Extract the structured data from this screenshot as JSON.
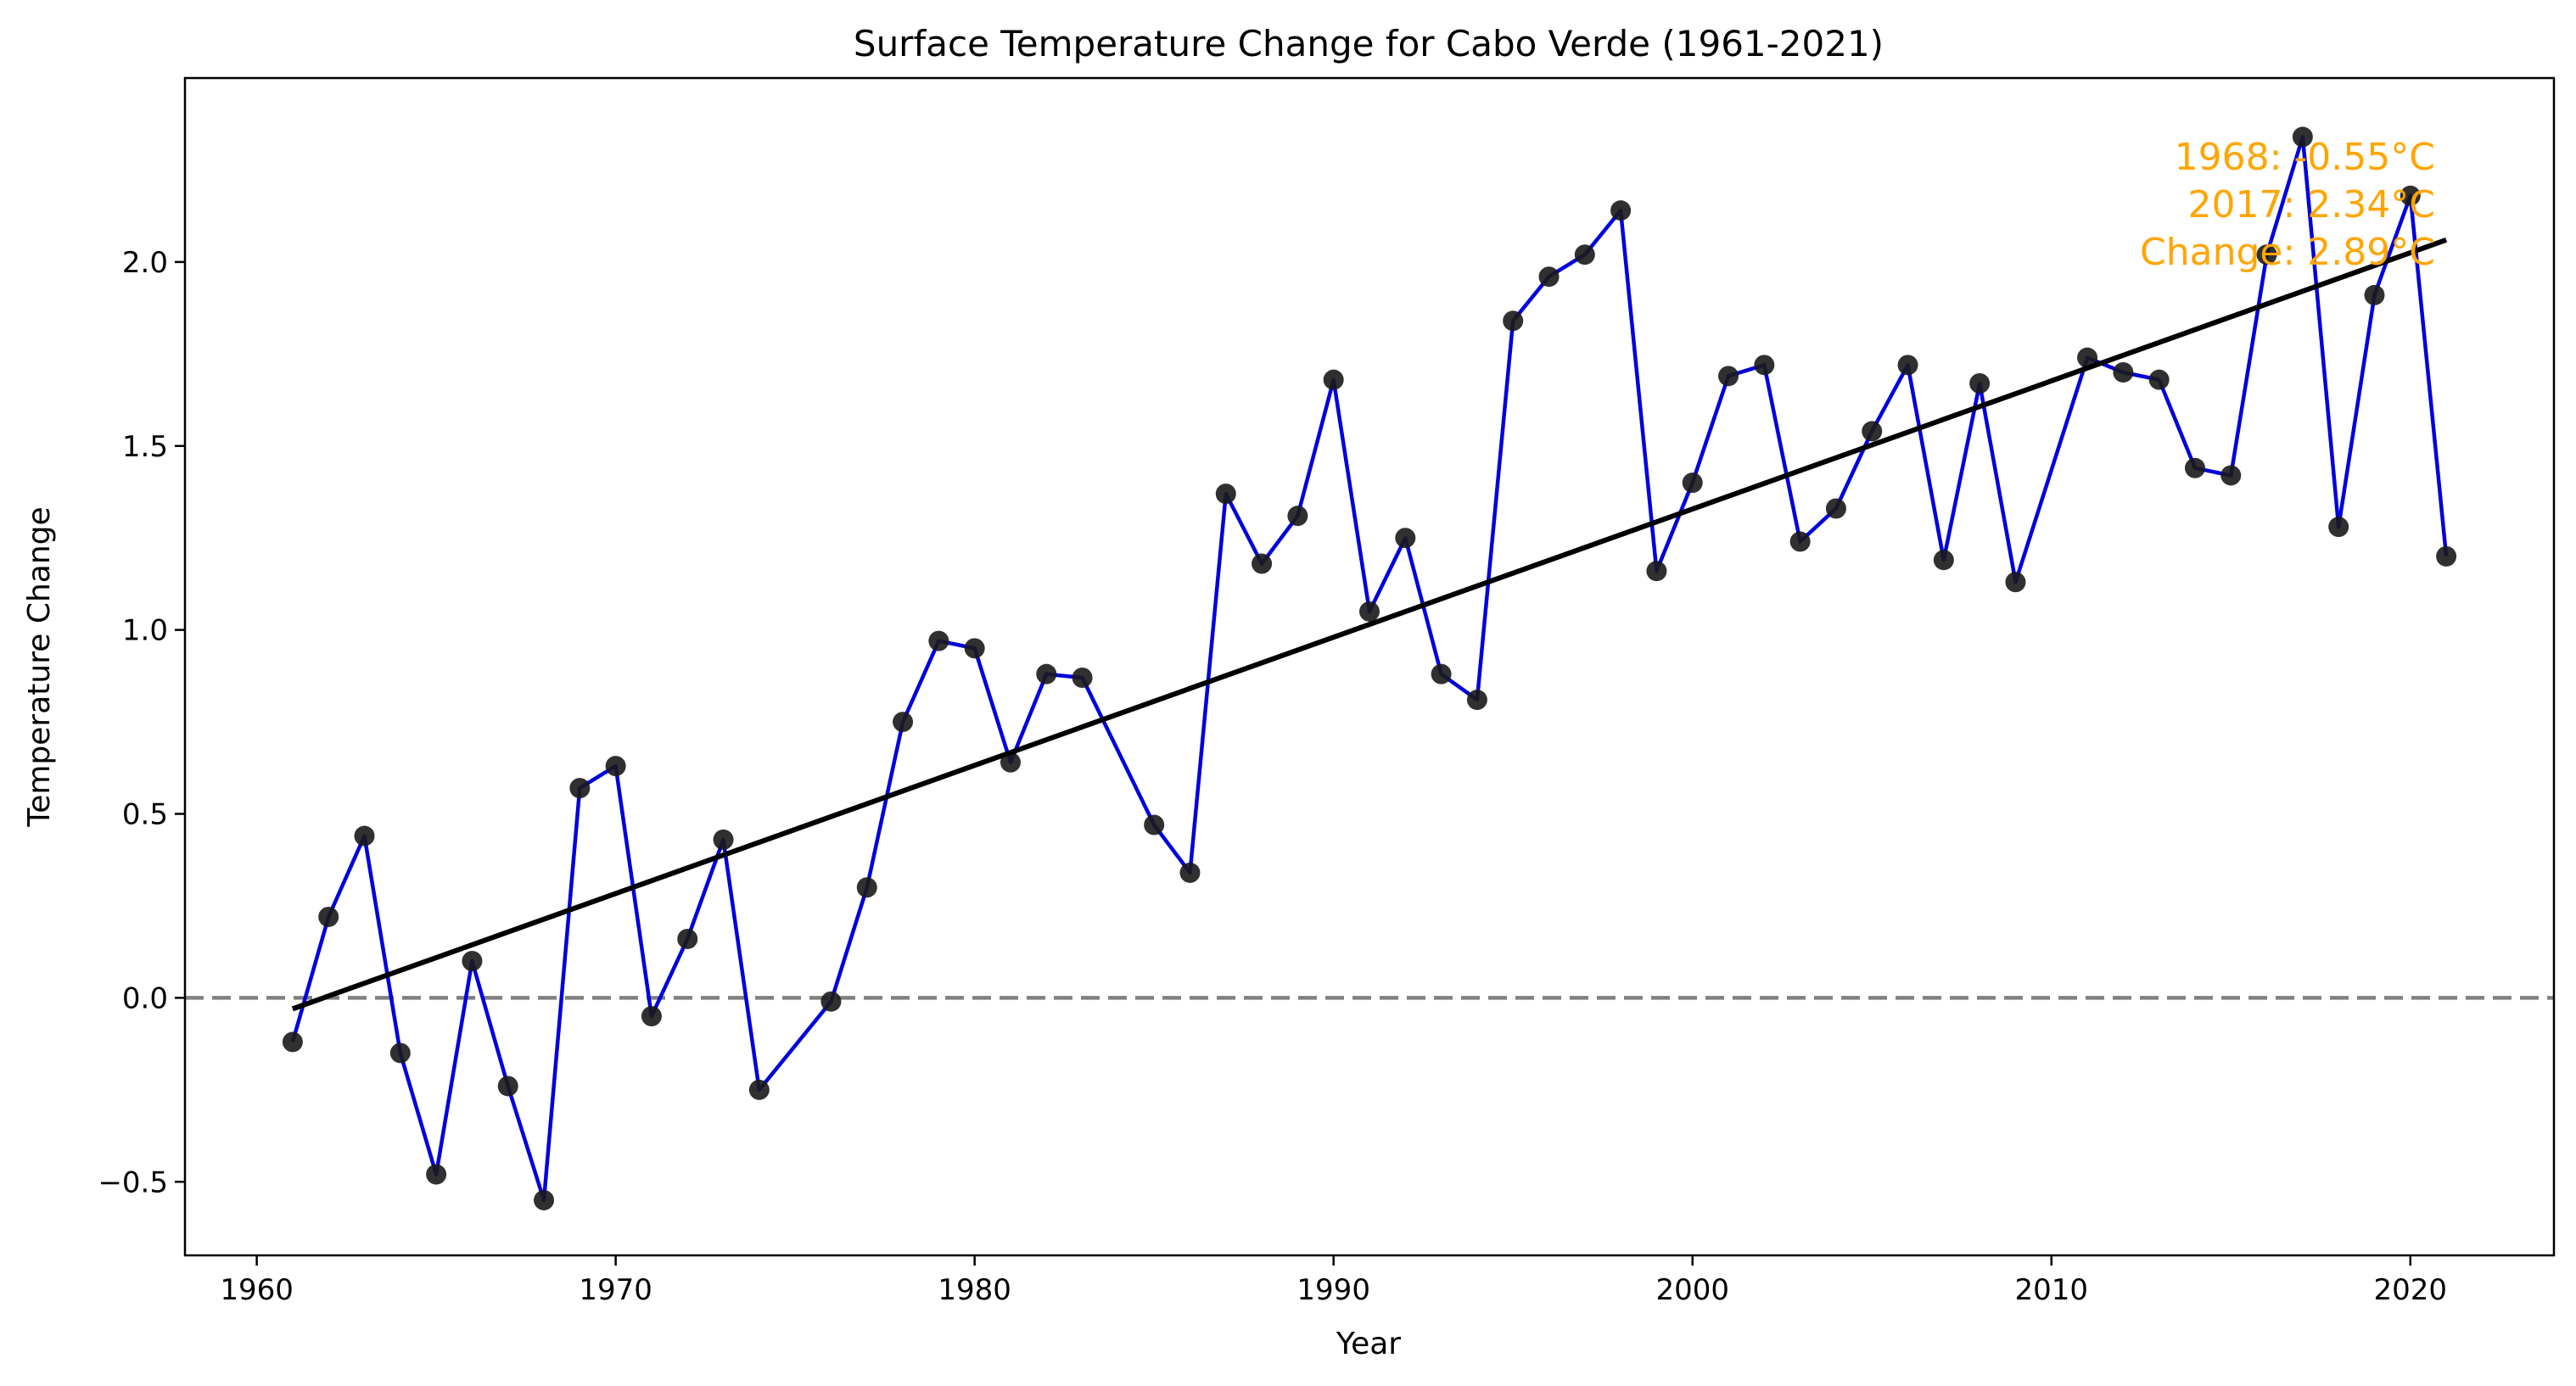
{
  "chart_data": {
    "type": "line",
    "title": "Surface Temperature Change for Cabo Verde (1961-2021)",
    "xlabel": "Year",
    "ylabel": "Temperature Change",
    "xlim": [
      1958.0,
      2024.0
    ],
    "ylim": [
      -0.7,
      2.5
    ],
    "xticks": [
      1960,
      1970,
      1980,
      1990,
      2000,
      2010,
      2020
    ],
    "xtick_labels": [
      "1960",
      "1970",
      "1980",
      "1990",
      "2000",
      "2010",
      "2020"
    ],
    "yticks": [
      -0.5,
      0.0,
      0.5,
      1.0,
      1.5,
      2.0
    ],
    "ytick_labels": [
      "−0.5",
      "0.0",
      "0.5",
      "1.0",
      "1.5",
      "2.0"
    ],
    "grid": false,
    "reference_line": {
      "y": 0.0,
      "style": "dashed",
      "color": "#808080"
    },
    "series": [
      {
        "style": "line+markers",
        "line_color": "#0000dd",
        "marker_color": "#1a1a1a",
        "x": [
          1961,
          1962,
          1963,
          1964,
          1965,
          1966,
          1967,
          1968,
          1969,
          1970,
          1971,
          1972,
          1973,
          1974,
          1976,
          1977,
          1978,
          1979,
          1980,
          1981,
          1982,
          1983,
          1985,
          1986,
          1987,
          1988,
          1989,
          1990,
          1991,
          1992,
          1993,
          1994,
          1995,
          1996,
          1997,
          1998,
          1999,
          2000,
          2001,
          2002,
          2003,
          2004,
          2005,
          2006,
          2007,
          2008,
          2009,
          2011,
          2012,
          2013,
          2014,
          2015,
          2016,
          2017,
          2018,
          2019,
          2020,
          2021
        ],
        "y": [
          -0.12,
          0.22,
          0.44,
          -0.15,
          -0.48,
          0.1,
          -0.24,
          -0.55,
          0.57,
          0.63,
          -0.05,
          0.16,
          0.43,
          -0.25,
          -0.01,
          0.3,
          0.75,
          0.97,
          0.95,
          0.64,
          0.88,
          0.87,
          0.47,
          0.34,
          1.37,
          1.18,
          1.31,
          1.68,
          1.05,
          1.25,
          0.88,
          0.81,
          1.84,
          1.96,
          2.02,
          2.14,
          1.16,
          1.4,
          1.69,
          1.72,
          1.24,
          1.33,
          1.54,
          1.72,
          1.19,
          1.67,
          1.13,
          1.74,
          1.7,
          1.68,
          1.44,
          1.42,
          2.02,
          2.34,
          1.28,
          1.91,
          2.18,
          1.2
        ]
      }
    ],
    "trend_line": {
      "x": [
        1961,
        2021
      ],
      "y": [
        -0.03,
        2.06
      ],
      "color": "#000000"
    },
    "annotation": {
      "lines": [
        "1968: -0.55°C",
        "2017: 2.34°C",
        "Change: 2.89°C"
      ],
      "color": "#ffa500",
      "placement": "top-right"
    }
  }
}
